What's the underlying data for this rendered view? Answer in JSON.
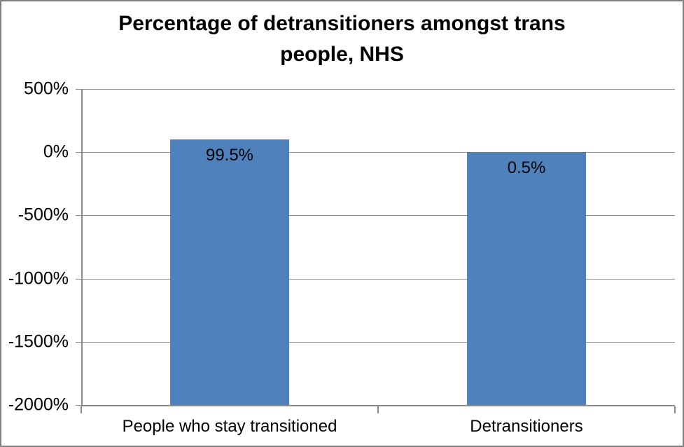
{
  "chart_data": {
    "type": "bar",
    "title": "Percentage of detransitioners amongst trans people, NHS",
    "title_lines": [
      "Percentage of detransitioners amongst trans",
      "people, NHS"
    ],
    "categories": [
      "People who stay transitioned",
      "Detransitioners"
    ],
    "values": [
      99.5,
      0.5
    ],
    "data_labels": [
      "99.5%",
      "0.5%"
    ],
    "bar_base": -2000,
    "ylim": [
      -2000,
      500
    ],
    "y_ticks": [
      {
        "value": 500,
        "label": "500%"
      },
      {
        "value": 0,
        "label": "0%"
      },
      {
        "value": -500,
        "label": "-500%"
      },
      {
        "value": -1000,
        "label": "-1000%"
      },
      {
        "value": -1500,
        "label": "-1500%"
      },
      {
        "value": -2000,
        "label": "-2000%"
      }
    ],
    "xlabel": "",
    "ylabel": "",
    "legend": "none",
    "grid": true,
    "colors": {
      "bar": "#4f81bd",
      "gridline": "#8e8e8e",
      "axis": "#8a8a8a",
      "tick": "#8a8a8a",
      "text": "#000000",
      "frame_border": "#7f7f7f",
      "background": "#ffffff"
    }
  }
}
